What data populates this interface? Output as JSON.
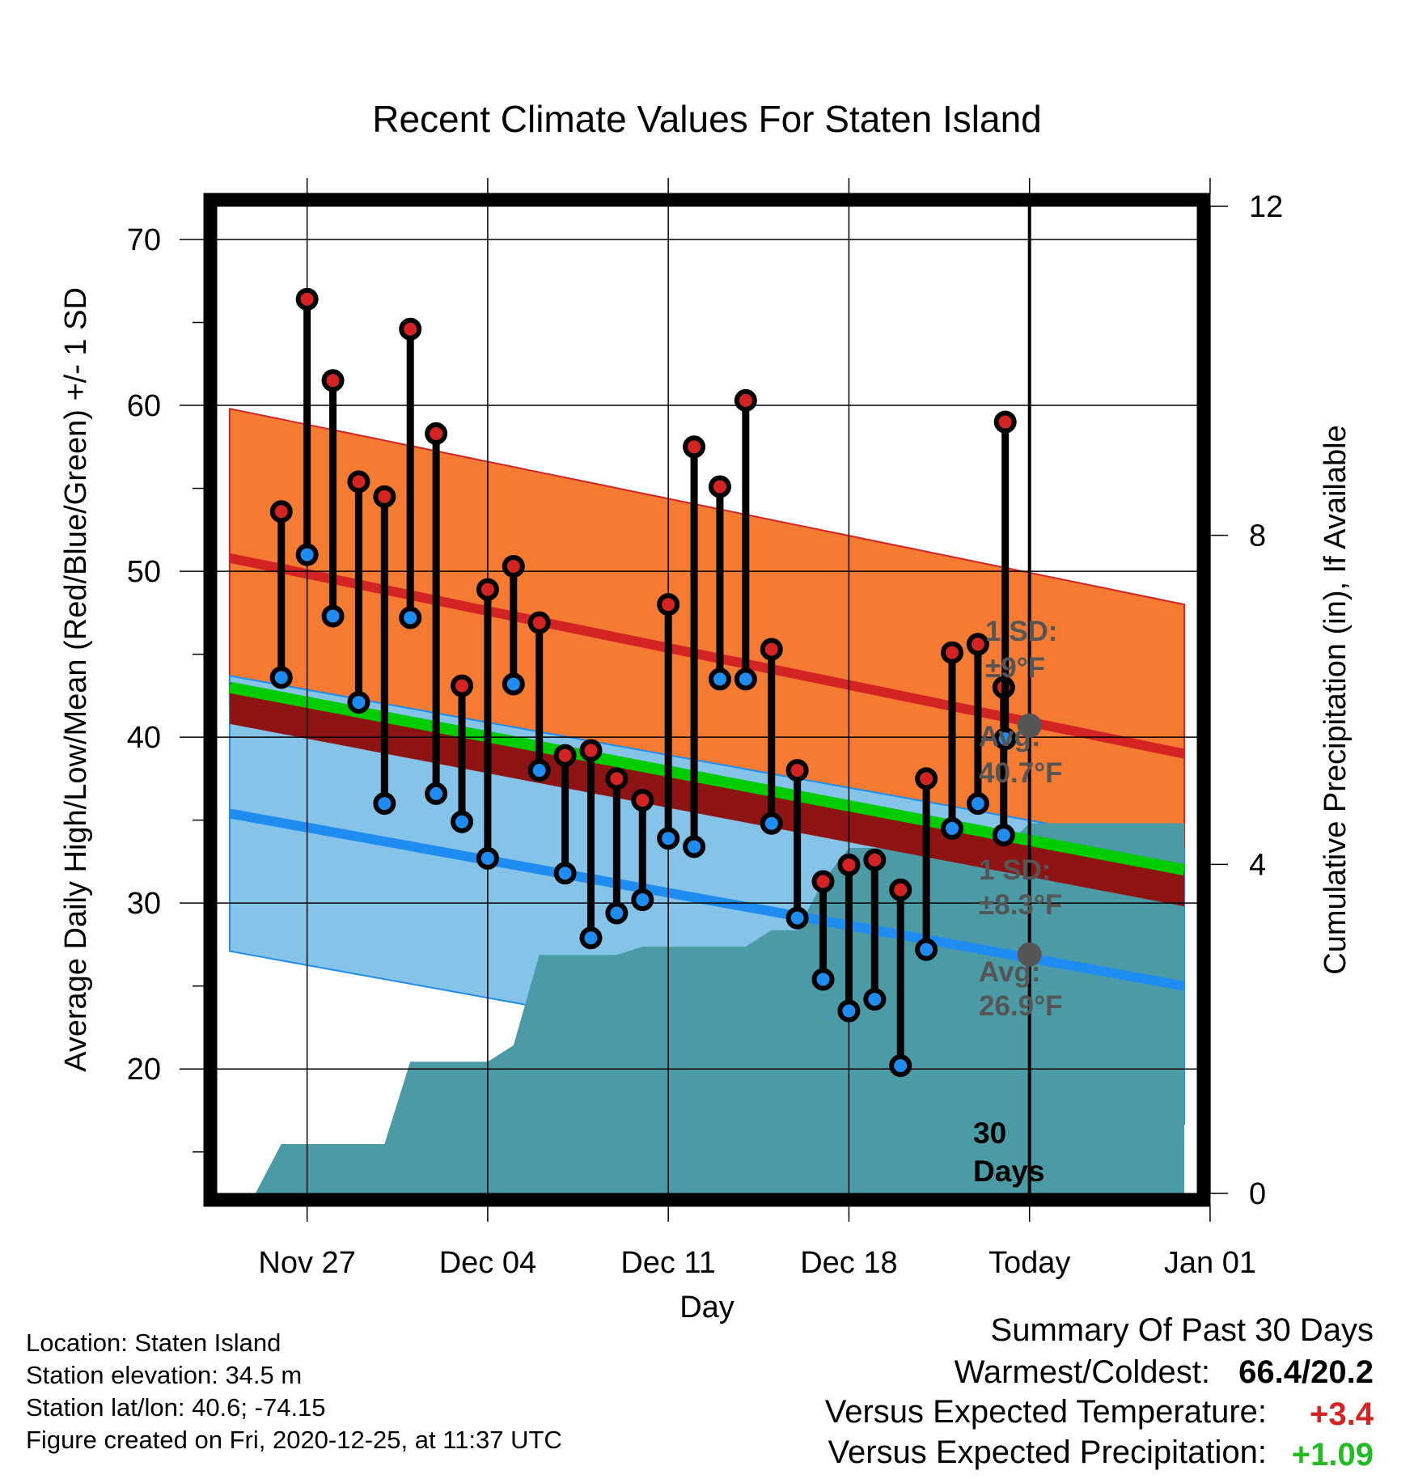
{
  "title": "Recent Climate Values For Staten Island",
  "xlabel": "Day",
  "ylabel_left": "Average Daily High/Low/Mean (Red/Blue/Green) +/- 1 SD",
  "ylabel_right": "Cumulative Precipitation (in), If Available",
  "x_ticks": [
    "Nov 27",
    "Dec 04",
    "Dec 11",
    "Dec 18",
    "Today",
    "Jan 01"
  ],
  "y_ticks_left": [
    "20",
    "30",
    "40",
    "50",
    "60",
    "70"
  ],
  "y_ticks_right": [
    "0",
    "4",
    "8",
    "12"
  ],
  "notes": {
    "high_sd": "1 SD:",
    "high_sd_val": "±9°F",
    "high_avg": "Avg:",
    "high_avg_val": "40.7°F",
    "low_sd": "1 SD:",
    "low_sd_val": "±8.3°F",
    "low_avg": "Avg:",
    "low_avg_val": "26.9°F",
    "days_num": "30",
    "days_word": "Days"
  },
  "summary": {
    "heading": "Summary Of Past 30 Days",
    "warm_label": "Warmest/Coldest:",
    "warm_value": "66.4/20.2",
    "temp_label": "Versus Expected Temperature:",
    "temp_value": "+3.4",
    "precip_label": "Versus Expected Precipitation:",
    "precip_value": "+1.09"
  },
  "info": {
    "location": "Location: Staten Island",
    "elevation": "Station elevation: 34.5 m",
    "latlon": "Station lat/lon: 40.6; -74.15",
    "created": "Figure created on Fri, 2020-12-25, at 11:37 UTC"
  },
  "colors": {
    "high_band": "#f47b31",
    "high_avg": "#d42323",
    "low_band": "#85c4e8",
    "low_avg": "#1e8cf0",
    "mean_band": "#8e1414",
    "mean_avg": "#00cc00",
    "precip": "#4a9ba5",
    "high_dot": "#d42323",
    "low_dot": "#1e8cf0",
    "summary_temp": "#d42323",
    "summary_precip": "#22bb22"
  },
  "chart_data": {
    "type": "line",
    "x_unit": "days relative to today (Dec 25)",
    "xlim": [
      -31.5,
      6.5
    ],
    "ylim_left": [
      12.5,
      72
    ],
    "ylim_right": [
      0,
      12
    ],
    "observed": {
      "x": [
        -29,
        -28,
        -27,
        -26,
        -25,
        -24,
        -23,
        -22,
        -21,
        -20,
        -19,
        -18,
        -17,
        -16,
        -15,
        -14,
        -13,
        -12,
        -11,
        -10,
        -9,
        -8,
        -7,
        -6,
        -5,
        -4,
        -3,
        -2,
        -1
      ],
      "high": [
        53.6,
        66.4,
        61.5,
        55.4,
        54.5,
        64.6,
        58.3,
        43.1,
        48.9,
        50.3,
        46.9,
        38.9,
        39.2,
        37.5,
        36.2,
        48.0,
        57.5,
        55.1,
        60.3,
        45.3,
        38.0,
        31.3,
        32.3,
        32.6,
        30.8,
        37.5,
        45.1,
        45.6,
        43.0
      ],
      "low": [
        43.6,
        51.0,
        47.3,
        42.1,
        36.0,
        47.2,
        36.6,
        34.9,
        32.7,
        43.2,
        38.0,
        31.8,
        27.9,
        29.4,
        30.2,
        33.9,
        33.4,
        43.5,
        43.5,
        34.8,
        29.1,
        25.4,
        23.5,
        24.2,
        20.2,
        27.2,
        34.5,
        36.0,
        34.1
      ]
    },
    "last_day": {
      "x": 0,
      "high": 59.0,
      "low": 39.9
    },
    "normals": {
      "x": [
        -31,
        6
      ],
      "high_avg": [
        50.8,
        39.0
      ],
      "high_sd": 9.0,
      "low_avg": [
        35.4,
        25.0
      ],
      "low_sd": 8.3,
      "mean_avg": [
        43.0,
        32.0
      ],
      "today_high_avg": 40.7,
      "today_low_avg": 26.9
    },
    "precipitation_cumulative": {
      "x": [
        -31,
        -30,
        -29,
        -28,
        -27,
        -26,
        -25,
        -24,
        -23,
        -22,
        -21,
        -20,
        -19,
        -18,
        -17,
        -16,
        -15,
        -14,
        -13,
        -12,
        -11,
        -10,
        -9,
        -8,
        -7,
        -6,
        -5,
        -4,
        -3,
        -2,
        -1,
        0,
        6
      ],
      "values": [
        0,
        0,
        0.6,
        0.6,
        0.6,
        0.6,
        0.6,
        1.6,
        1.6,
        1.6,
        1.6,
        1.8,
        2.9,
        2.9,
        2.9,
        2.9,
        3.0,
        3.0,
        3.0,
        3.0,
        3.0,
        3.2,
        3.2,
        3.8,
        4.2,
        4.2,
        4.2,
        4.2,
        4.2,
        4.2,
        4.2,
        4.5,
        4.5
      ]
    },
    "today_x": 0,
    "today_label": "Today"
  }
}
